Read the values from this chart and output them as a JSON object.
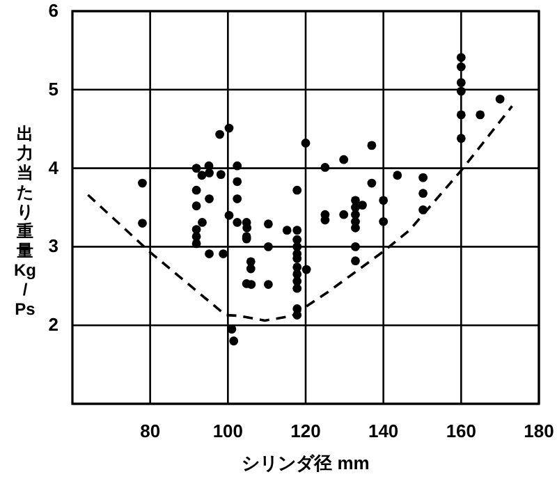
{
  "chart_data": {
    "type": "scatter",
    "xlabel": "シリンダ径 mm",
    "ylabel": "出力当たり重量 Kg/Ps",
    "xlim": [
      60,
      180
    ],
    "ylim": [
      1,
      6
    ],
    "xticks": [
      80,
      100,
      120,
      140,
      160,
      180
    ],
    "yticks": [
      {
        "value": 1,
        "label": null
      },
      2,
      3,
      4,
      5,
      6
    ],
    "grid": true,
    "series": [
      {
        "type": "scatter",
        "color": "#000000",
        "marker": "circle",
        "x": [
          78,
          78,
          97.9,
          100.3,
          91.9,
          93.3,
          95.1,
          95.2,
          98.2,
          102.4,
          102.4,
          91.9,
          95.2,
          102.4,
          91.9,
          93.4,
          91.9,
          91.9,
          91.9,
          100.3,
          102.4,
          104.8,
          104.9,
          104.8,
          104.8,
          95.2,
          98.8,
          105.9,
          105.9,
          104.8,
          106,
          101,
          101.5,
          110.4,
          110.4,
          110.4,
          115.2,
          117.8,
          117.8,
          117.8,
          117.8,
          117.8,
          117.8,
          117.8,
          117.8,
          117.8,
          117.8,
          117.8,
          120.2,
          120,
          117.8,
          125,
          129.8,
          125,
          125,
          129.8,
          132.8,
          132.8,
          132.8,
          132.8,
          132.8,
          132.8,
          132.8,
          134.6,
          137,
          137,
          140,
          140,
          143.6,
          150.2,
          150.2,
          150.2,
          160,
          160,
          160,
          160,
          160,
          160,
          164.9,
          170
        ],
        "values": [
          3.81,
          3.3,
          4.43,
          4.51,
          4.0,
          3.91,
          4.03,
          3.94,
          3.92,
          4.03,
          3.83,
          3.72,
          3.61,
          3.61,
          3.52,
          3.31,
          3.22,
          3.13,
          3.04,
          3.4,
          3.31,
          3.31,
          3.24,
          3.13,
          3.1,
          2.91,
          2.91,
          2.81,
          2.72,
          2.53,
          2.52,
          1.95,
          1.8,
          3.29,
          3.0,
          2.52,
          3.21,
          3.21,
          3.09,
          3.0,
          2.91,
          2.85,
          2.74,
          2.65,
          2.56,
          2.47,
          2.21,
          2.13,
          2.71,
          4.32,
          3.72,
          4.01,
          4.11,
          3.41,
          3.34,
          3.41,
          3.59,
          3.5,
          3.41,
          3.32,
          3.24,
          3.0,
          2.82,
          3.53,
          4.29,
          3.81,
          3.59,
          3.32,
          3.91,
          3.88,
          3.68,
          3.47,
          5.41,
          5.29,
          5.09,
          4.98,
          4.68,
          4.38,
          4.68,
          4.88
        ]
      },
      {
        "type": "line",
        "color": "#000000",
        "line_style": "dashed",
        "marker": "none",
        "x": [
          64,
          80,
          99.4,
          103,
          109.5,
          116.6,
          126.2,
          140,
          146.7,
          160,
          173.1
        ],
        "values": [
          3.66,
          2.93,
          2.13,
          2.12,
          2.06,
          2.12,
          2.44,
          2.94,
          3.21,
          3.97,
          4.79
        ]
      }
    ]
  }
}
